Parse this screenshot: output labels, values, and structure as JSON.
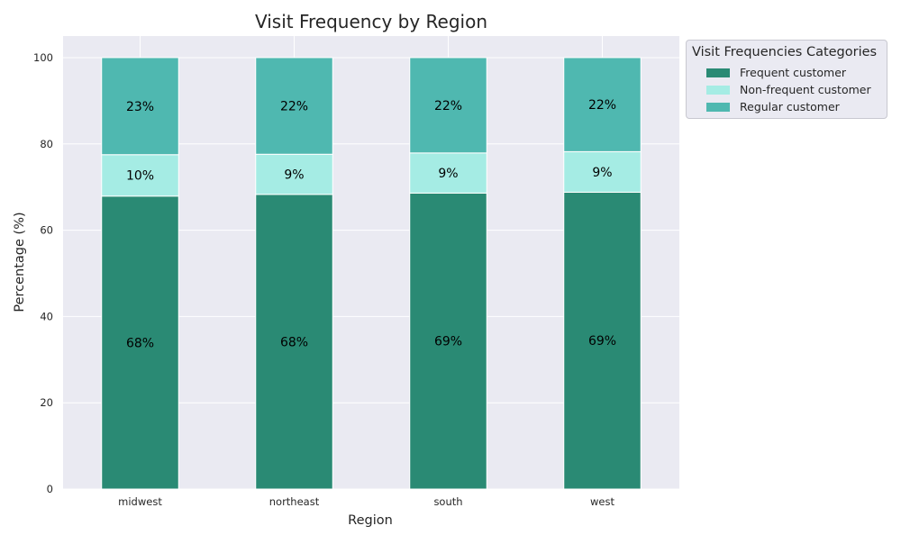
{
  "chart_data": {
    "type": "bar",
    "stacked": true,
    "title": "Visit Frequency by Region",
    "xlabel": "Region",
    "ylabel": "Percentage (%)",
    "ylim": [
      0,
      105
    ],
    "yticks": [
      0,
      20,
      40,
      60,
      80,
      100
    ],
    "grid": true,
    "categories": [
      "midwest",
      "northeast",
      "south",
      "west"
    ],
    "series": [
      {
        "name": "Frequent customer",
        "values": [
          67.9,
          68.3,
          68.6,
          68.8
        ],
        "labels": [
          "68%",
          "68%",
          "69%",
          "69%"
        ],
        "color": "#2a8a74"
      },
      {
        "name": "Non-frequent customer",
        "values": [
          9.6,
          9.3,
          9.3,
          9.4
        ],
        "labels": [
          "10%",
          "9%",
          "9%",
          "9%"
        ],
        "color": "#a5ece4"
      },
      {
        "name": "Regular customer",
        "values": [
          22.5,
          22.4,
          22.1,
          21.8
        ],
        "labels": [
          "23%",
          "22%",
          "22%",
          "22%"
        ],
        "color": "#4fb8b0"
      }
    ],
    "legend": {
      "title": "Visit Frequencies Categories",
      "placement": "outside-top-right"
    }
  },
  "colors": {
    "plot_background": "#eaeaf2",
    "grid": "#ffffff",
    "text": "#262626"
  }
}
